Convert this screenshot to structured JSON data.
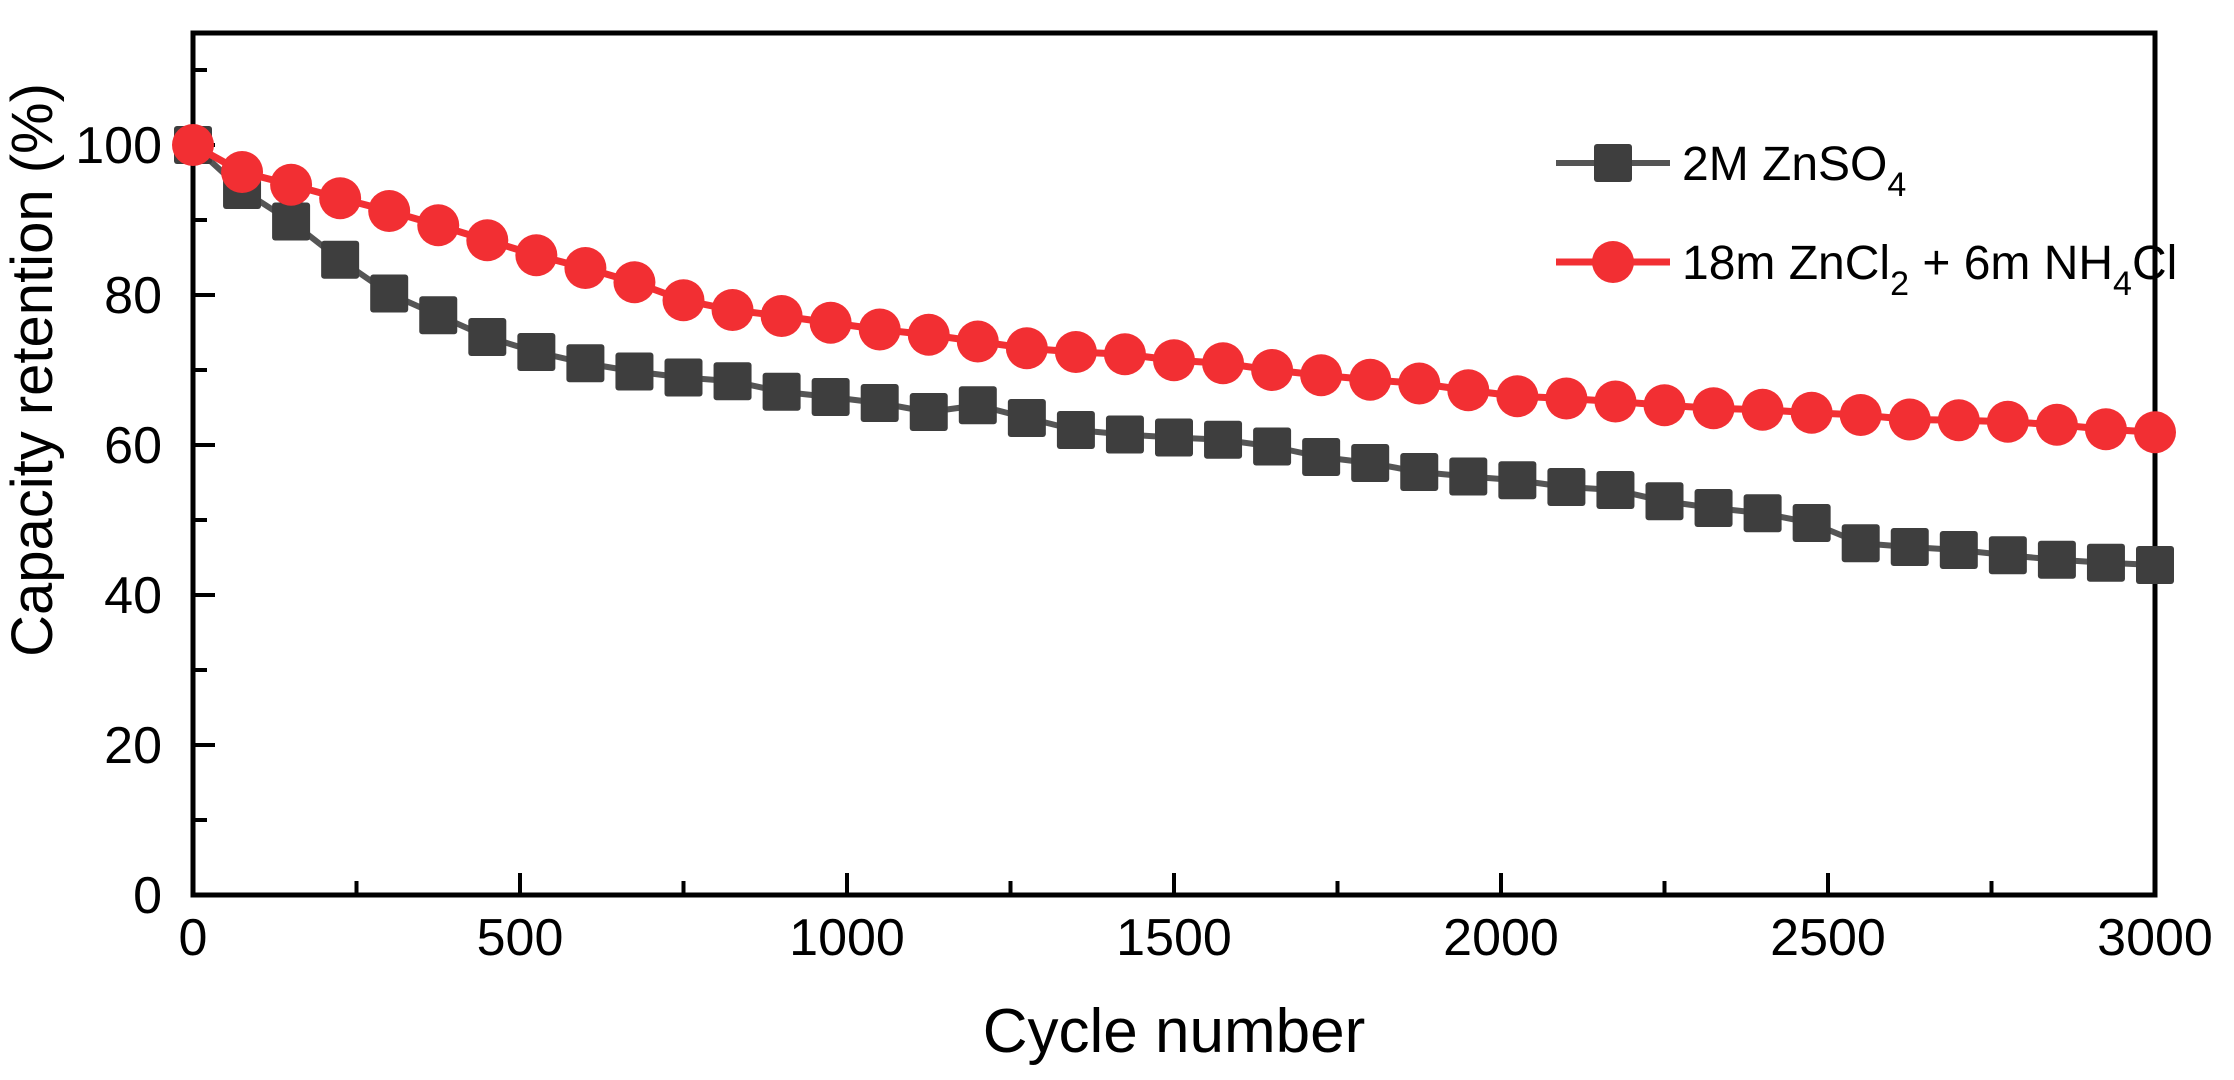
{
  "figure": {
    "background": "#ffffff",
    "frame_color": "#000000",
    "text_color": "#000000"
  },
  "axes": {
    "x": {
      "title": "Cycle number",
      "major_ticks": [
        0,
        500,
        1000,
        1500,
        2000,
        2500,
        3000
      ],
      "major_tick_labels": [
        "0",
        "500",
        "1000",
        "1500",
        "2000",
        "2500",
        "3000"
      ],
      "minor_ticks": [
        250,
        750,
        1250,
        1750,
        2250,
        2750
      ]
    },
    "y": {
      "title": "Capacity retention (%)",
      "major_ticks": [
        0,
        20,
        40,
        60,
        80,
        100
      ],
      "major_tick_labels": [
        "0",
        "20",
        "40",
        "60",
        "80",
        "100"
      ],
      "minor_ticks": [
        10,
        30,
        50,
        70,
        90,
        110
      ]
    }
  },
  "legend": [
    {
      "name": "2M ZnSO4",
      "segments": [
        {
          "t": "2M ZnSO"
        },
        {
          "t": "4",
          "sub": true
        }
      ],
      "marker": "square",
      "marker_color": "#3e3e3e",
      "line_color": "#555555"
    },
    {
      "name": "18m ZnCl2 + 6m NH4Cl",
      "segments": [
        {
          "t": "18m ZnCl"
        },
        {
          "t": "2",
          "sub": true
        },
        {
          "t": " + 6m NH"
        },
        {
          "t": "4",
          "sub": true
        },
        {
          "t": "Cl"
        }
      ],
      "marker": "circle",
      "marker_color": "#f22f33",
      "line_color": "#f22f33"
    }
  ],
  "chart_data": {
    "type": "line",
    "title": "",
    "xlabel": "Cycle number",
    "ylabel": "Capacity retention (%)",
    "xlim": [
      0,
      3000
    ],
    "ylim": [
      0,
      115
    ],
    "grid": false,
    "legend_position": "top-right",
    "x": [
      0,
      75,
      150,
      225,
      300,
      375,
      450,
      525,
      600,
      675,
      750,
      825,
      900,
      975,
      1050,
      1125,
      1200,
      1275,
      1350,
      1425,
      1500,
      1575,
      1650,
      1725,
      1800,
      1875,
      1950,
      2025,
      2100,
      2175,
      2250,
      2325,
      2400,
      2475,
      2550,
      2625,
      2700,
      2775,
      2850,
      2925,
      3000
    ],
    "series": [
      {
        "name": "2M ZnSO4",
        "marker": "square",
        "marker_color": "#3e3e3e",
        "line_color": "#555555",
        "values": [
          100,
          94.0,
          89.8,
          84.7,
          80.2,
          77.3,
          74.4,
          72.4,
          70.9,
          69.8,
          69.0,
          68.5,
          67.1,
          66.4,
          65.6,
          64.4,
          65.3,
          63.6,
          62.0,
          61.4,
          61.0,
          60.7,
          59.8,
          58.4,
          57.6,
          56.4,
          55.8,
          55.3,
          54.4,
          54.0,
          52.5,
          51.6,
          50.9,
          49.6,
          46.9,
          46.4,
          46.0,
          45.3,
          44.7,
          44.3,
          44.0
        ]
      },
      {
        "name": "18m ZnCl2 + 6m NH4Cl",
        "marker": "circle",
        "marker_color": "#f22f33",
        "line_color": "#f22f33",
        "values": [
          100,
          96.4,
          94.7,
          92.9,
          91.2,
          89.3,
          87.3,
          85.3,
          83.6,
          81.7,
          79.3,
          78.0,
          77.2,
          76.3,
          75.4,
          74.7,
          73.8,
          72.9,
          72.4,
          72.1,
          71.3,
          70.9,
          70.0,
          69.3,
          68.7,
          68.2,
          67.3,
          66.5,
          66.2,
          65.8,
          65.3,
          64.9,
          64.7,
          64.3,
          64.0,
          63.4,
          63.3,
          63.1,
          62.7,
          62.1,
          61.7
        ]
      }
    ]
  }
}
